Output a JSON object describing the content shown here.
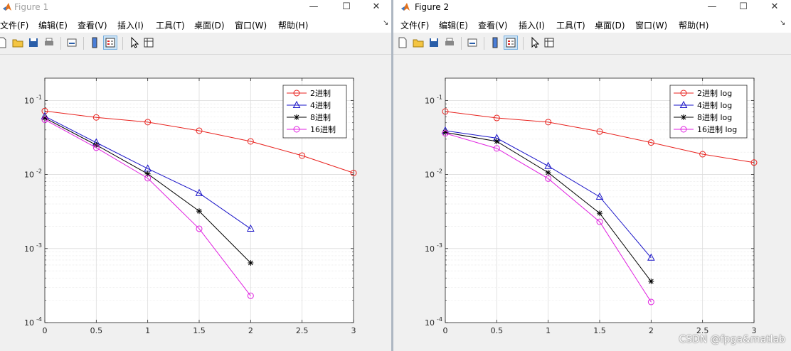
{
  "windows": [
    {
      "title": "Figure 1",
      "menu": [
        "文件(F)",
        "编辑(E)",
        "查看(V)",
        "插入(I)",
        "工具(T)",
        "桌面(D)",
        "窗口(W)",
        "帮助(H)"
      ],
      "menu_overflow": "↘"
    },
    {
      "title": "Figure 2",
      "menu": [
        "文件(F)",
        "编辑(E)",
        "查看(V)",
        "插入(I)",
        "工具(T)",
        "桌面(D)",
        "窗口(W)",
        "帮助(H)"
      ],
      "menu_overflow": "↘"
    }
  ],
  "window_controls": {
    "minimize": "—",
    "maximize": "☐",
    "close": "✕"
  },
  "toolbar_icons": [
    "new-file-icon",
    "open-folder-icon",
    "save-icon",
    "print-icon",
    "link-figure-icon",
    "colorbar-icon",
    "legend-icon",
    "select-pointer-icon",
    "property-editor-icon"
  ],
  "colors": {
    "red": "#e8221e",
    "blue": "#1a14c8",
    "black": "#000000",
    "magenta": "#e020e0",
    "grid": "#d9d9d9",
    "axes": "#262626"
  },
  "watermark": "CSDN @fpga&matlab",
  "chart_data": [
    {
      "type": "line",
      "yscale": "log",
      "xlim": [
        0,
        3
      ],
      "ylim": [
        0.0001,
        0.2
      ],
      "xticks": [
        0,
        0.5,
        1,
        1.5,
        2,
        2.5,
        3
      ],
      "xtick_labels": [
        "0",
        "0.5",
        "1",
        "1.5",
        "2",
        "2.5",
        "3"
      ],
      "yticks": [
        0.0001,
        0.001,
        0.01,
        0.1
      ],
      "ytick_labels": [
        [
          "10",
          "-4"
        ],
        [
          "10",
          "-3"
        ],
        [
          "10",
          "-2"
        ],
        [
          "10",
          "-1"
        ]
      ],
      "grid": true,
      "legend_position": "top-right",
      "series": [
        {
          "name": "2进制",
          "color": "#e8221e",
          "marker": "circle",
          "x": [
            0,
            0.5,
            1,
            1.5,
            2,
            2.5,
            3
          ],
          "y": [
            0.072,
            0.059,
            0.051,
            0.039,
            0.028,
            0.018,
            0.0105
          ]
        },
        {
          "name": "4进制",
          "color": "#1a14c8",
          "marker": "triangle",
          "x": [
            0,
            0.5,
            1,
            1.5,
            2
          ],
          "y": [
            0.061,
            0.027,
            0.012,
            0.0056,
            0.00185
          ]
        },
        {
          "name": "8进制",
          "color": "#000000",
          "marker": "star",
          "x": [
            0,
            0.5,
            1,
            1.5,
            2
          ],
          "y": [
            0.058,
            0.025,
            0.0102,
            0.0032,
            0.00064
          ]
        },
        {
          "name": "16进制",
          "color": "#e020e0",
          "marker": "circle",
          "x": [
            0,
            0.5,
            1,
            1.5,
            2
          ],
          "y": [
            0.055,
            0.023,
            0.0089,
            0.00185,
            0.00023
          ]
        }
      ]
    },
    {
      "type": "line",
      "yscale": "log",
      "xlim": [
        0,
        3
      ],
      "ylim": [
        0.0001,
        0.2
      ],
      "xticks": [
        0,
        0.5,
        1,
        1.5,
        2,
        2.5,
        3
      ],
      "xtick_labels": [
        "0",
        "0.5",
        "1",
        "1.5",
        "2",
        "2.5",
        "3"
      ],
      "yticks": [
        0.0001,
        0.001,
        0.01,
        0.1
      ],
      "ytick_labels": [
        [
          "10",
          "-4"
        ],
        [
          "10",
          "-3"
        ],
        [
          "10",
          "-2"
        ],
        [
          "10",
          "-1"
        ]
      ],
      "grid": true,
      "legend_position": "top-right",
      "series": [
        {
          "name": "2进制 log",
          "color": "#e8221e",
          "marker": "circle",
          "x": [
            0,
            0.5,
            1,
            1.5,
            2,
            2.5,
            3
          ],
          "y": [
            0.071,
            0.058,
            0.051,
            0.038,
            0.027,
            0.0188,
            0.0145
          ]
        },
        {
          "name": "4进制 log",
          "color": "#1a14c8",
          "marker": "triangle",
          "x": [
            0,
            0.5,
            1,
            1.5,
            2
          ],
          "y": [
            0.039,
            0.031,
            0.013,
            0.005,
            0.00075
          ]
        },
        {
          "name": "8进制 log",
          "color": "#000000",
          "marker": "star",
          "x": [
            0,
            0.5,
            1,
            1.5,
            2
          ],
          "y": [
            0.037,
            0.028,
            0.0106,
            0.003,
            0.00036
          ]
        },
        {
          "name": "16进制 log",
          "color": "#e020e0",
          "marker": "circle",
          "x": [
            0,
            0.5,
            1,
            1.5,
            2
          ],
          "y": [
            0.036,
            0.0225,
            0.0088,
            0.0023,
            0.00019
          ]
        }
      ]
    }
  ]
}
